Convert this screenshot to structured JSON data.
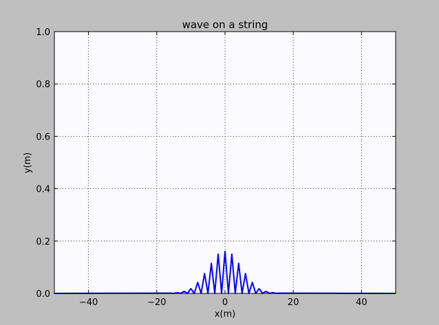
{
  "chart_data": {
    "type": "line",
    "title": "wave on a string",
    "xlabel": "x(m)",
    "ylabel": "y(m)",
    "x": [
      -50,
      -16,
      -15,
      -14,
      -13,
      -12,
      -11,
      -10,
      -9,
      -8,
      -7,
      -6,
      -5,
      -4,
      -3,
      -2,
      -1,
      0,
      1,
      2,
      3,
      4,
      5,
      6,
      7,
      8,
      9,
      10,
      11,
      12,
      13,
      14,
      15,
      16,
      50
    ],
    "series": [
      {
        "color": "#0000ff",
        "values": [
          0,
          0.001,
          0,
          0.003,
          0,
          0.008,
          0,
          0.018,
          0,
          0.042,
          0,
          0.076,
          0,
          0.115,
          0,
          0.15,
          0,
          0.16,
          0,
          0.15,
          0,
          0.115,
          0,
          0.076,
          0,
          0.042,
          0,
          0.018,
          0,
          0.008,
          0,
          0.003,
          0,
          0.001,
          0
        ]
      }
    ],
    "xlim": [
      -50,
      50
    ],
    "xticks": [
      {
        "value": -40,
        "label": "−40"
      },
      {
        "value": -20,
        "label": "−20"
      },
      0,
      20,
      40
    ],
    "ylim": [
      0,
      1
    ],
    "yticks": [
      {
        "value": 0,
        "label": "0.0"
      },
      0.2,
      0.4,
      0.6,
      0.8,
      {
        "value": 1,
        "label": "1.0"
      }
    ],
    "grid": true
  }
}
